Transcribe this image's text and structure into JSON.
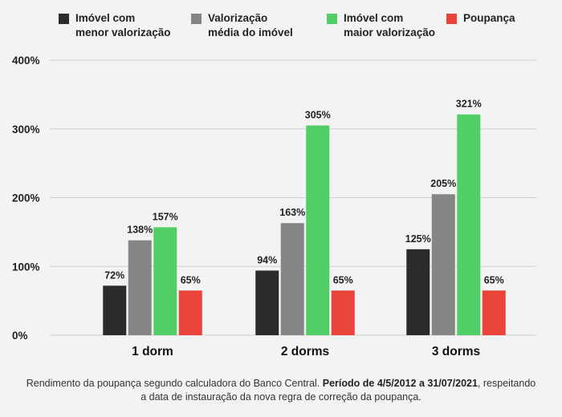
{
  "chart_data": {
    "type": "bar",
    "categories": [
      "1 dorm",
      "2 dorms",
      "3 dorms"
    ],
    "series": [
      {
        "name": "Imóvel com\nmenor valorização",
        "color": "#2b2b2b",
        "values": [
          72,
          94,
          125
        ],
        "labels": [
          "72%",
          "94%",
          "125%"
        ]
      },
      {
        "name": "Valorização\nmédia do imóvel",
        "color": "#858585",
        "values": [
          138,
          163,
          205
        ],
        "labels": [
          "138%",
          "163%",
          "205%"
        ]
      },
      {
        "name": "Imóvel com\nmaior valorização",
        "color": "#51cf66",
        "values": [
          157,
          305,
          321
        ],
        "labels": [
          "157%",
          "305%",
          "321%"
        ]
      },
      {
        "name": "Poupança",
        "color": "#e9433a",
        "values": [
          65,
          65,
          65
        ],
        "labels": [
          "65%",
          "65%",
          "65%"
        ]
      }
    ],
    "yticks": [
      0,
      100,
      200,
      300,
      400
    ],
    "ytick_labels": [
      "0%",
      "100%",
      "200%",
      "300%",
      "400%"
    ],
    "ylim": [
      0,
      400
    ],
    "grid": true,
    "legend_position": "top"
  },
  "footnote": {
    "normal_1": "Rendimento da poupança segundo calculadora do Banco Central. ",
    "bold": "Período de 4/5/2012 a 31/07/2021",
    "normal_2": ", respeitando a data de instauração da nova regra de correção da poupança."
  }
}
